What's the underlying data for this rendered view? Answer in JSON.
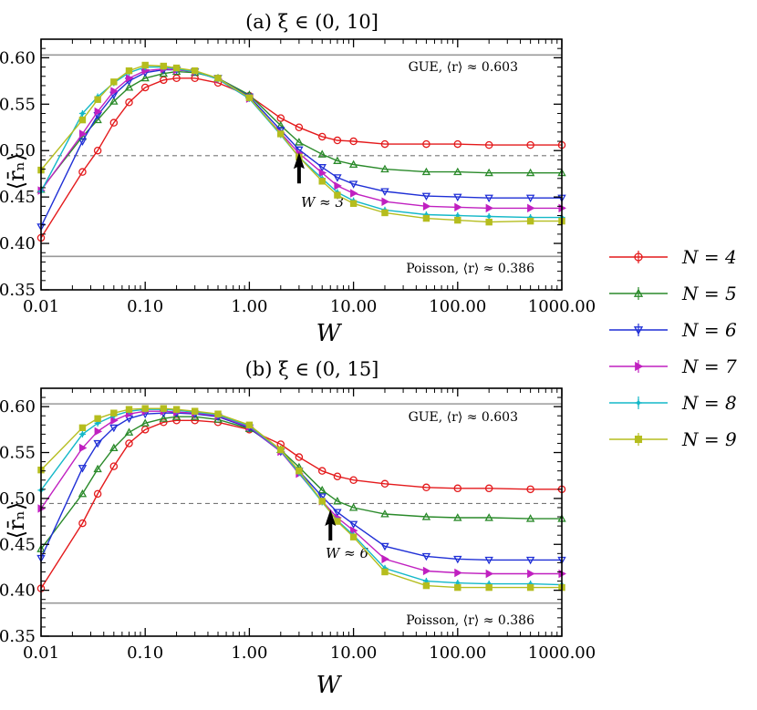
{
  "chart_data": [
    {
      "type": "line",
      "title": "(a) ξ ∈ (0, 10]",
      "xlabel": "W",
      "ylabel": "⟨r̄ₙ⟩",
      "xscale": "log",
      "xlim": [
        0.01,
        1000
      ],
      "ylim": [
        0.35,
        0.62
      ],
      "x_tick_labels": [
        "0.01",
        "0.10",
        "1.00",
        "10.00",
        "100.00",
        "1000.00"
      ],
      "y_tick_labels": [
        "0.35",
        "0.40",
        "0.45",
        "0.50",
        "0.55",
        "0.60"
      ],
      "reference_lines": [
        {
          "label": "GUE, ⟨r⟩ ≈ 0.603",
          "value": 0.603,
          "style": "solid"
        },
        {
          "label": "Poisson, ⟨r⟩ ≈ 0.386",
          "value": 0.386,
          "style": "solid"
        },
        {
          "label": "",
          "value": 0.4945,
          "style": "dashed"
        }
      ],
      "arrow": {
        "label": "W ≈ 3",
        "x": 3,
        "y": 0.48
      },
      "series": [
        {
          "name": "N = 4",
          "color": "#e41a1c",
          "marker": "circle",
          "x": [
            0.01,
            0.025,
            0.035,
            0.05,
            0.07,
            0.1,
            0.15,
            0.2,
            0.3,
            0.5,
            1,
            2,
            3,
            5,
            7,
            10,
            20,
            50,
            100,
            200,
            500,
            1000
          ],
          "y": [
            0.406,
            0.477,
            0.5,
            0.53,
            0.552,
            0.568,
            0.576,
            0.578,
            0.578,
            0.573,
            0.559,
            0.535,
            0.525,
            0.515,
            0.511,
            0.51,
            0.507,
            0.507,
            0.507,
            0.506,
            0.506,
            0.506
          ]
        },
        {
          "name": "N = 5",
          "color": "#2a8a2a",
          "marker": "triangle-up",
          "x": [
            0.01,
            0.025,
            0.035,
            0.05,
            0.07,
            0.1,
            0.15,
            0.2,
            0.3,
            0.5,
            1,
            2,
            3,
            5,
            7,
            10,
            20,
            50,
            100,
            200,
            500,
            1000
          ],
          "y": [
            0.458,
            0.515,
            0.533,
            0.553,
            0.568,
            0.578,
            0.583,
            0.585,
            0.584,
            0.578,
            0.56,
            0.527,
            0.509,
            0.496,
            0.489,
            0.485,
            0.48,
            0.477,
            0.477,
            0.476,
            0.476,
            0.476
          ]
        },
        {
          "name": "N = 6",
          "color": "#1f2fd6",
          "marker": "triangle-down",
          "x": [
            0.01,
            0.025,
            0.035,
            0.05,
            0.07,
            0.1,
            0.15,
            0.2,
            0.3,
            0.5,
            1,
            2,
            3,
            5,
            7,
            10,
            20,
            50,
            100,
            200,
            500,
            1000
          ],
          "y": [
            0.418,
            0.51,
            0.538,
            0.56,
            0.575,
            0.584,
            0.587,
            0.587,
            0.585,
            0.578,
            0.558,
            0.522,
            0.501,
            0.482,
            0.471,
            0.464,
            0.456,
            0.451,
            0.45,
            0.449,
            0.449,
            0.449
          ]
        },
        {
          "name": "N = 7",
          "color": "#c020c0",
          "marker": "triangle-right",
          "x": [
            0.01,
            0.025,
            0.035,
            0.05,
            0.07,
            0.1,
            0.15,
            0.2,
            0.3,
            0.5,
            1,
            2,
            3,
            5,
            7,
            10,
            20,
            50,
            100,
            200,
            500,
            1000
          ],
          "y": [
            0.457,
            0.518,
            0.542,
            0.564,
            0.578,
            0.586,
            0.588,
            0.587,
            0.585,
            0.577,
            0.556,
            0.519,
            0.497,
            0.476,
            0.462,
            0.454,
            0.445,
            0.44,
            0.439,
            0.438,
            0.438,
            0.438
          ]
        },
        {
          "name": "N = 8",
          "color": "#14b8c8",
          "marker": "cross",
          "x": [
            0.01,
            0.025,
            0.035,
            0.05,
            0.07,
            0.1,
            0.15,
            0.2,
            0.3,
            0.5,
            1,
            2,
            3,
            5,
            7,
            10,
            20,
            50,
            100,
            200,
            500,
            1000
          ],
          "y": [
            0.456,
            0.54,
            0.558,
            0.573,
            0.584,
            0.59,
            0.59,
            0.588,
            0.585,
            0.577,
            0.556,
            0.517,
            0.493,
            0.47,
            0.455,
            0.446,
            0.436,
            0.431,
            0.43,
            0.429,
            0.428,
            0.428
          ]
        },
        {
          "name": "N = 9",
          "color": "#b5bd1e",
          "marker": "square",
          "x": [
            0.01,
            0.025,
            0.035,
            0.05,
            0.07,
            0.1,
            0.15,
            0.2,
            0.3,
            0.5,
            1,
            2,
            3,
            5,
            7,
            10,
            20,
            50,
            100,
            200,
            500,
            1000
          ],
          "y": [
            0.479,
            0.533,
            0.555,
            0.574,
            0.586,
            0.592,
            0.591,
            0.589,
            0.586,
            0.578,
            0.557,
            0.518,
            0.493,
            0.467,
            0.452,
            0.443,
            0.433,
            0.427,
            0.425,
            0.423,
            0.424,
            0.424
          ]
        }
      ]
    },
    {
      "type": "line",
      "title": "(b) ξ ∈ (0, 15]",
      "xlabel": "W",
      "ylabel": "⟨r̄ₙ⟩",
      "xscale": "log",
      "xlim": [
        0.01,
        1000
      ],
      "ylim": [
        0.35,
        0.62
      ],
      "x_tick_labels": [
        "0.01",
        "0.10",
        "1.00",
        "10.00",
        "100.00",
        "1000.00"
      ],
      "y_tick_labels": [
        "0.35",
        "0.40",
        "0.45",
        "0.50",
        "0.55",
        "0.60"
      ],
      "reference_lines": [
        {
          "label": "GUE, ⟨r⟩ ≈ 0.603",
          "value": 0.603,
          "style": "solid"
        },
        {
          "label": "Poisson, ⟨r⟩ ≈ 0.386",
          "value": 0.386,
          "style": "solid"
        },
        {
          "label": "",
          "value": 0.4945,
          "style": "dashed"
        }
      ],
      "arrow": {
        "label": "W ≈ 6",
        "x": 6,
        "y": 0.47
      },
      "series": [
        {
          "name": "N = 4",
          "color": "#e41a1c",
          "marker": "circle",
          "x": [
            0.01,
            0.025,
            0.035,
            0.05,
            0.07,
            0.1,
            0.15,
            0.2,
            0.3,
            0.5,
            1,
            2,
            3,
            5,
            7,
            10,
            20,
            50,
            100,
            200,
            500,
            1000
          ],
          "y": [
            0.402,
            0.473,
            0.505,
            0.535,
            0.56,
            0.575,
            0.583,
            0.585,
            0.585,
            0.583,
            0.575,
            0.559,
            0.545,
            0.53,
            0.524,
            0.52,
            0.516,
            0.512,
            0.511,
            0.511,
            0.51,
            0.51
          ]
        },
        {
          "name": "N = 5",
          "color": "#2a8a2a",
          "marker": "triangle-up",
          "x": [
            0.01,
            0.025,
            0.035,
            0.05,
            0.07,
            0.1,
            0.15,
            0.2,
            0.3,
            0.5,
            1,
            2,
            3,
            5,
            7,
            10,
            20,
            50,
            100,
            200,
            500,
            1000
          ],
          "y": [
            0.445,
            0.505,
            0.532,
            0.555,
            0.572,
            0.582,
            0.587,
            0.589,
            0.589,
            0.586,
            0.576,
            0.553,
            0.534,
            0.509,
            0.497,
            0.49,
            0.483,
            0.48,
            0.479,
            0.479,
            0.478,
            0.478
          ]
        },
        {
          "name": "N = 6",
          "color": "#1f2fd6",
          "marker": "triangle-down",
          "x": [
            0.01,
            0.025,
            0.035,
            0.05,
            0.07,
            0.1,
            0.15,
            0.2,
            0.3,
            0.5,
            1,
            2,
            3,
            5,
            7,
            10,
            20,
            50,
            100,
            200,
            500,
            1000
          ],
          "y": [
            0.435,
            0.533,
            0.56,
            0.577,
            0.587,
            0.592,
            0.593,
            0.593,
            0.592,
            0.589,
            0.577,
            0.551,
            0.53,
            0.502,
            0.485,
            0.472,
            0.448,
            0.437,
            0.434,
            0.433,
            0.433,
            0.433
          ]
        },
        {
          "name": "N = 7",
          "color": "#c020c0",
          "marker": "triangle-right",
          "x": [
            0.01,
            0.025,
            0.035,
            0.05,
            0.07,
            0.1,
            0.15,
            0.2,
            0.3,
            0.5,
            1,
            2,
            3,
            5,
            7,
            10,
            20,
            50,
            100,
            200,
            500,
            1000
          ],
          "y": [
            0.489,
            0.555,
            0.573,
            0.585,
            0.592,
            0.595,
            0.595,
            0.594,
            0.593,
            0.59,
            0.578,
            0.551,
            0.527,
            0.497,
            0.479,
            0.465,
            0.434,
            0.421,
            0.419,
            0.418,
            0.418,
            0.418
          ]
        },
        {
          "name": "N = 8",
          "color": "#14b8c8",
          "marker": "cross",
          "x": [
            0.01,
            0.025,
            0.035,
            0.05,
            0.07,
            0.1,
            0.15,
            0.2,
            0.3,
            0.5,
            1,
            2,
            3,
            5,
            7,
            10,
            20,
            50,
            100,
            200,
            500,
            1000
          ],
          "y": [
            0.509,
            0.57,
            0.582,
            0.59,
            0.595,
            0.597,
            0.597,
            0.596,
            0.594,
            0.591,
            0.579,
            0.552,
            0.528,
            0.496,
            0.476,
            0.46,
            0.424,
            0.41,
            0.408,
            0.407,
            0.407,
            0.406
          ]
        },
        {
          "name": "N = 9",
          "color": "#b5bd1e",
          "marker": "square",
          "x": [
            0.01,
            0.025,
            0.035,
            0.05,
            0.07,
            0.1,
            0.15,
            0.2,
            0.3,
            0.5,
            1,
            2,
            3,
            5,
            7,
            10,
            20,
            50,
            100,
            200,
            500,
            1000
          ],
          "y": [
            0.531,
            0.577,
            0.587,
            0.593,
            0.597,
            0.598,
            0.598,
            0.597,
            0.595,
            0.592,
            0.58,
            0.553,
            0.53,
            0.497,
            0.475,
            0.458,
            0.42,
            0.405,
            0.403,
            0.403,
            0.403,
            0.403
          ]
        }
      ]
    }
  ]
}
